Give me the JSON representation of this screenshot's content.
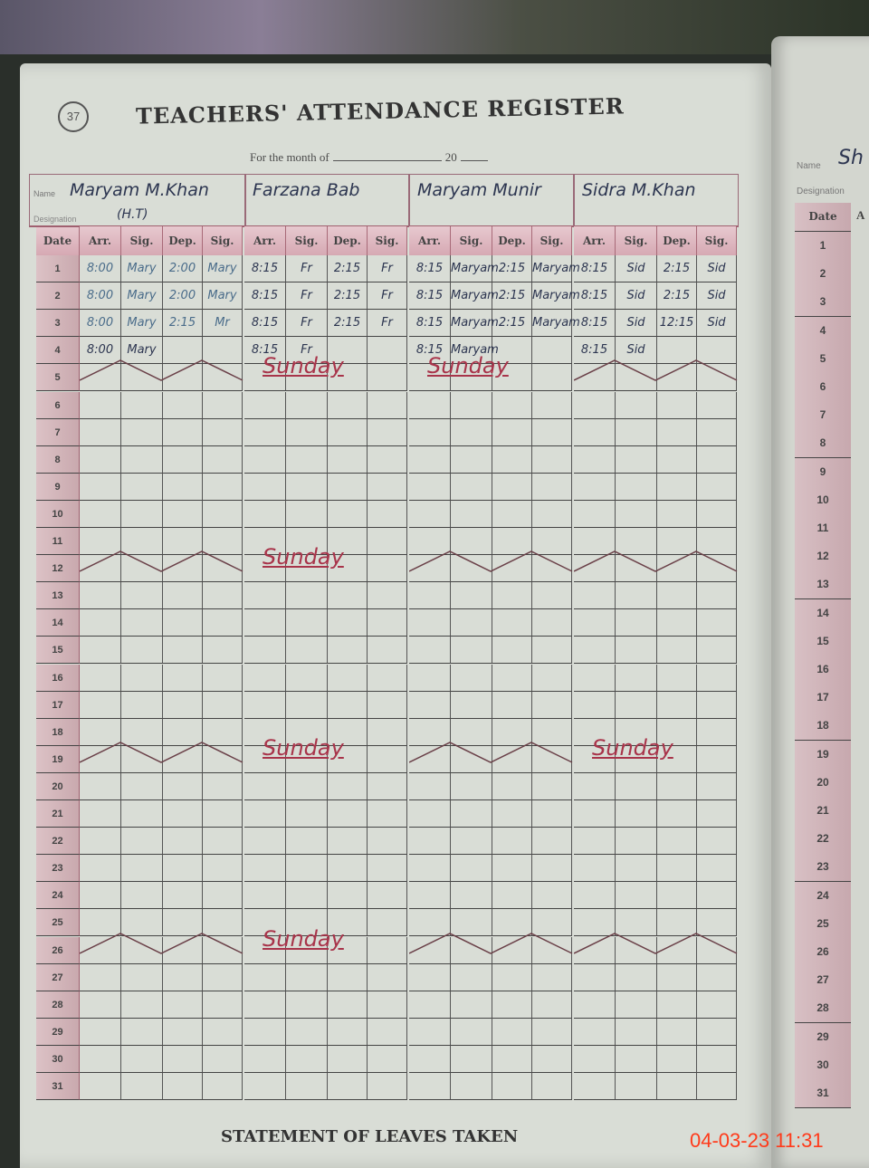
{
  "register": {
    "page_number": "37",
    "title": "TEACHERS' ATTENDANCE REGISTER",
    "month_label": "For the month of",
    "year_label": "20",
    "name_label": "Name",
    "designation_label": "Designation",
    "date_header": "Date",
    "column_headers": [
      "Arr.",
      "Sig.",
      "Dep.",
      "Sig."
    ],
    "dates": [
      "1",
      "2",
      "3",
      "4",
      "5",
      "6",
      "7",
      "8",
      "9",
      "10",
      "11",
      "12",
      "13",
      "14",
      "15",
      "16",
      "17",
      "18",
      "19",
      "20",
      "21",
      "22",
      "23",
      "24",
      "25",
      "26",
      "27",
      "28",
      "29",
      "30",
      "31"
    ],
    "sunday_text": "Sunday",
    "teachers": [
      {
        "name": "Maryam M.Khan",
        "designation": "(H.T)",
        "entries": [
          [
            "8:00",
            "Mary",
            "2:00",
            "Mary"
          ],
          [
            "8:00",
            "Mary",
            "2:00",
            "Mary"
          ],
          [
            "8:00",
            "Mary",
            "2:15",
            "Mr"
          ],
          [
            "8:00",
            "Mary",
            "",
            ""
          ]
        ],
        "sunday_written": []
      },
      {
        "name": "Farzana Bab",
        "designation": "",
        "entries": [
          [
            "8:15",
            "Fr",
            "2:15",
            "Fr"
          ],
          [
            "8:15",
            "Fr",
            "2:15",
            "Fr"
          ],
          [
            "8:15",
            "Fr",
            "2:15",
            "Fr"
          ],
          [
            "8:15",
            "Fr",
            "",
            ""
          ]
        ],
        "sunday_written": [
          "5",
          "12",
          "19",
          "26"
        ]
      },
      {
        "name": "Maryam Munir",
        "designation": "",
        "entries": [
          [
            "8:15",
            "Maryam",
            "2:15",
            "Maryam"
          ],
          [
            "8:15",
            "Maryam",
            "2:15",
            "Maryam"
          ],
          [
            "8:15",
            "Maryam",
            "2:15",
            "Maryam"
          ],
          [
            "8:15",
            "Maryam",
            "",
            ""
          ]
        ],
        "sunday_written": [
          "5"
        ]
      },
      {
        "name": "Sidra M.Khan",
        "designation": "",
        "entries": [
          [
            "8:15",
            "Sid",
            "2:15",
            "Sid"
          ],
          [
            "8:15",
            "Sid",
            "2:15",
            "Sid"
          ],
          [
            "8:15",
            "Sid",
            "12:15",
            "Sid"
          ],
          [
            "8:15",
            "Sid",
            "",
            ""
          ]
        ],
        "sunday_written": [
          "19"
        ]
      }
    ],
    "sunday_dates": [
      "5",
      "12",
      "19",
      "26"
    ],
    "footer": "STATEMENT OF LEAVES TAKEN"
  },
  "next_page": {
    "name_label": "Name",
    "name_value": "Sh",
    "designation_label": "Designation",
    "date_header": "Date",
    "col_header": "A"
  },
  "camera_timestamp": "04-03-23  11:31",
  "colors": {
    "ink_blue": "#2c3550",
    "ink_red": "#a8344a",
    "rule_pink": "#a06070",
    "timestamp": "#ff3a1a"
  }
}
